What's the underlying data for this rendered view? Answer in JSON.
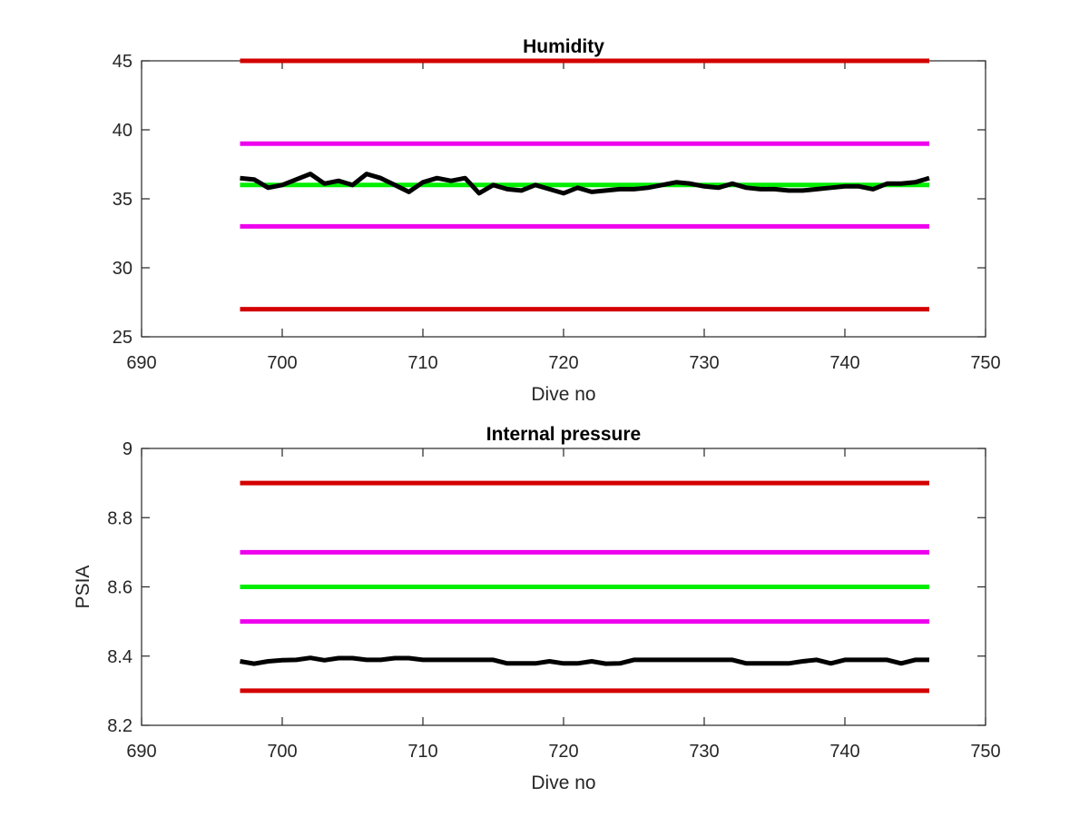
{
  "chart_data": [
    {
      "type": "line",
      "title": "Humidity",
      "xlabel": "Dive no",
      "ylabel": "",
      "xlim": [
        690,
        750
      ],
      "ylim": [
        25,
        45
      ],
      "xticks": [
        690,
        700,
        710,
        720,
        730,
        740,
        750
      ],
      "yticks": [
        25,
        30,
        35,
        40,
        45
      ],
      "grid": false,
      "series": [
        {
          "color": "#d40000",
          "x": [
            697,
            746
          ],
          "y": [
            45,
            45
          ]
        },
        {
          "color": "#ee00ee",
          "x": [
            697,
            746
          ],
          "y": [
            39,
            39
          ]
        },
        {
          "color": "#00ee00",
          "x": [
            697,
            746
          ],
          "y": [
            36,
            36
          ]
        },
        {
          "color": "#ee00ee",
          "x": [
            697,
            746
          ],
          "y": [
            33,
            33
          ]
        },
        {
          "color": "#d40000",
          "x": [
            697,
            746
          ],
          "y": [
            27,
            27
          ]
        },
        {
          "color": "#000000",
          "x": [
            697,
            698,
            699,
            700,
            701,
            702,
            703,
            704,
            705,
            706,
            707,
            708,
            709,
            710,
            711,
            712,
            713,
            714,
            715,
            716,
            717,
            718,
            719,
            720,
            721,
            722,
            723,
            724,
            725,
            726,
            727,
            728,
            729,
            730,
            731,
            732,
            733,
            734,
            735,
            736,
            737,
            738,
            739,
            740,
            741,
            742,
            743,
            744,
            745,
            746
          ],
          "y": [
            36.5,
            36.4,
            35.8,
            36.0,
            36.4,
            36.8,
            36.1,
            36.3,
            36.0,
            36.8,
            36.5,
            36.0,
            35.5,
            36.2,
            36.5,
            36.3,
            36.5,
            35.4,
            36.0,
            35.7,
            35.6,
            36.0,
            35.7,
            35.4,
            35.8,
            35.5,
            35.6,
            35.7,
            35.7,
            35.8,
            36.0,
            36.2,
            36.1,
            35.9,
            35.8,
            36.1,
            35.8,
            35.7,
            35.7,
            35.6,
            35.6,
            35.7,
            35.8,
            35.9,
            35.9,
            35.7,
            36.1,
            36.1,
            36.2,
            36.5
          ]
        }
      ]
    },
    {
      "type": "line",
      "title": "Internal pressure",
      "xlabel": "Dive no",
      "ylabel": "PSIA",
      "xlim": [
        690,
        750
      ],
      "ylim": [
        8.2,
        9
      ],
      "xticks": [
        690,
        700,
        710,
        720,
        730,
        740,
        750
      ],
      "yticks": [
        8.2,
        8.4,
        8.6,
        8.8,
        9
      ],
      "grid": false,
      "series": [
        {
          "color": "#d40000",
          "x": [
            697,
            746
          ],
          "y": [
            8.9,
            8.9
          ]
        },
        {
          "color": "#ee00ee",
          "x": [
            697,
            746
          ],
          "y": [
            8.7,
            8.7
          ]
        },
        {
          "color": "#00ee00",
          "x": [
            697,
            746
          ],
          "y": [
            8.6,
            8.6
          ]
        },
        {
          "color": "#ee00ee",
          "x": [
            697,
            746
          ],
          "y": [
            8.5,
            8.5
          ]
        },
        {
          "color": "#d40000",
          "x": [
            697,
            746
          ],
          "y": [
            8.3,
            8.3
          ]
        },
        {
          "color": "#000000",
          "x": [
            697,
            698,
            699,
            700,
            701,
            702,
            703,
            704,
            705,
            706,
            707,
            708,
            709,
            710,
            711,
            712,
            713,
            714,
            715,
            716,
            717,
            718,
            719,
            720,
            721,
            722,
            723,
            724,
            725,
            726,
            727,
            728,
            729,
            730,
            731,
            732,
            733,
            734,
            735,
            736,
            737,
            738,
            739,
            740,
            741,
            742,
            743,
            744,
            745,
            746
          ],
          "y": [
            8.385,
            8.378,
            8.385,
            8.388,
            8.389,
            8.395,
            8.388,
            8.394,
            8.394,
            8.389,
            8.389,
            8.394,
            8.394,
            8.389,
            8.389,
            8.389,
            8.389,
            8.389,
            8.389,
            8.379,
            8.379,
            8.379,
            8.385,
            8.379,
            8.379,
            8.385,
            8.378,
            8.379,
            8.389,
            8.389,
            8.389,
            8.389,
            8.389,
            8.389,
            8.389,
            8.389,
            8.379,
            8.379,
            8.379,
            8.379,
            8.385,
            8.389,
            8.379,
            8.389,
            8.389,
            8.389,
            8.389,
            8.379,
            8.389,
            8.389
          ]
        }
      ]
    }
  ]
}
